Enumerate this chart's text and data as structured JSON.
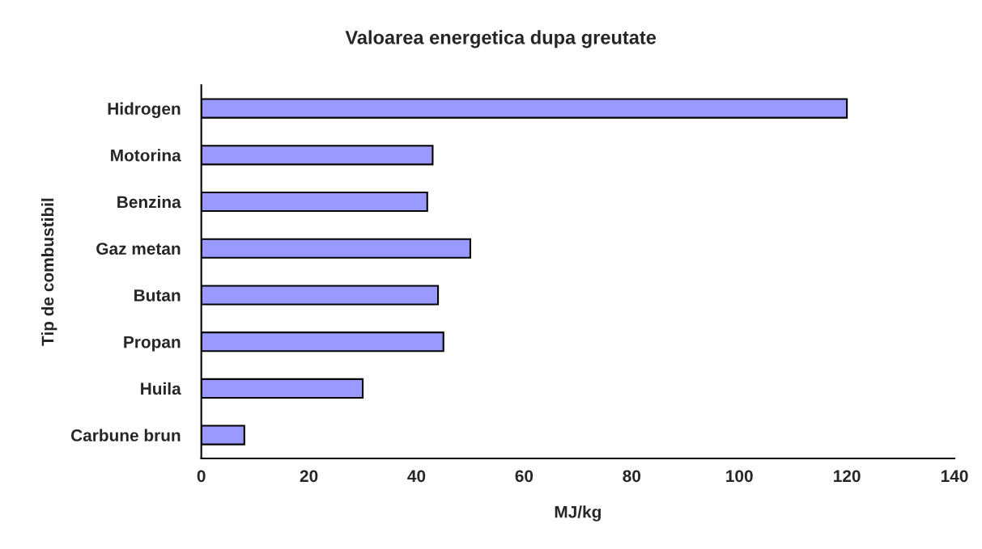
{
  "chart_data": {
    "type": "bar",
    "orientation": "horizontal",
    "title": "Valoarea energetica dupa greutate",
    "xlabel": "MJ/kg",
    "ylabel": "Tip de combustibil",
    "categories": [
      "Hidrogen",
      "Motorina",
      "Benzina",
      "Gaz metan",
      "Butan",
      "Propan",
      "Huila",
      "Carbune brun"
    ],
    "values": [
      120,
      43,
      42,
      50,
      44,
      45,
      30,
      8
    ],
    "color": "#9999ff",
    "xlim": [
      0,
      140
    ],
    "xticks": [
      0,
      20,
      40,
      60,
      80,
      100,
      120,
      140
    ],
    "grid": false,
    "legend": false
  }
}
